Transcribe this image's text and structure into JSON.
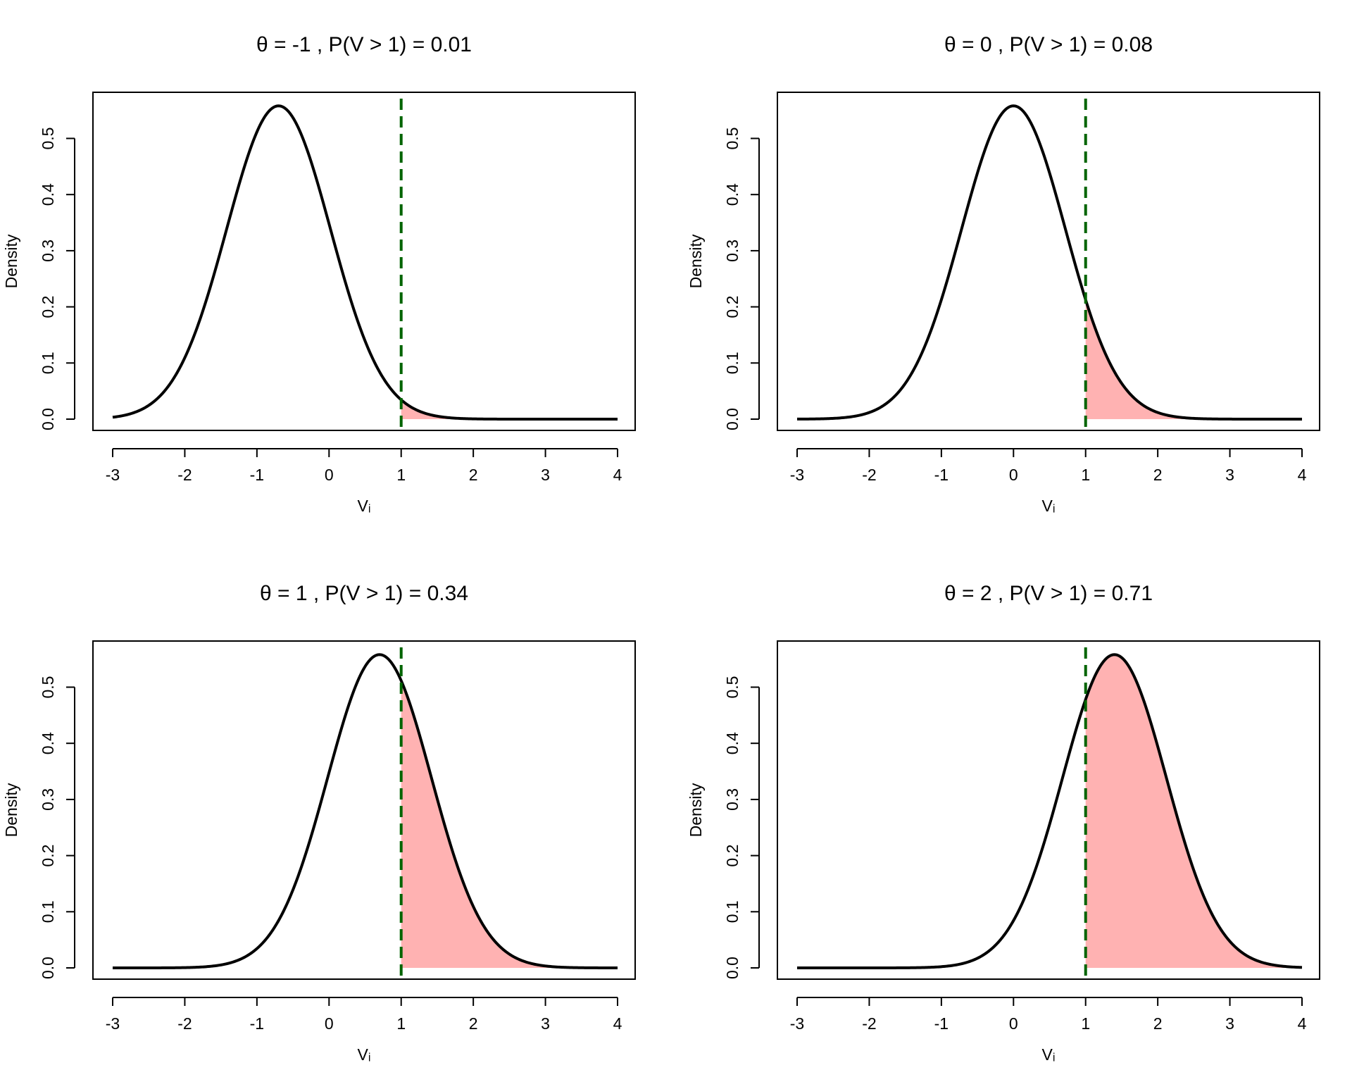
{
  "chart_data": [
    {
      "type": "area",
      "title": "θ = -1 , P(V > 1) =  0.01",
      "theta": -1,
      "prob_label": "0.01",
      "xlabel": "Vᵢ",
      "ylabel": "Density",
      "xlim": [
        -3,
        4
      ],
      "ylim": [
        0,
        0.56
      ],
      "xticks": [
        -3,
        -2,
        -1,
        0,
        1,
        2,
        3,
        4
      ],
      "yticks": [
        0.0,
        0.1,
        0.2,
        0.3,
        0.4,
        0.5
      ],
      "threshold": 1,
      "mode": -0.7,
      "peak_density": 0.558,
      "shaded_region": "V > 1"
    },
    {
      "type": "area",
      "title": "θ = 0 , P(V > 1) =  0.08",
      "theta": 0,
      "prob_label": "0.08",
      "xlabel": "Vᵢ",
      "ylabel": "Density",
      "xlim": [
        -3,
        4
      ],
      "ylim": [
        0,
        0.56
      ],
      "xticks": [
        -3,
        -2,
        -1,
        0,
        1,
        2,
        3,
        4
      ],
      "yticks": [
        0.0,
        0.1,
        0.2,
        0.3,
        0.4,
        0.5
      ],
      "threshold": 1,
      "mode": 0.0,
      "peak_density": 0.558,
      "shaded_region": "V > 1"
    },
    {
      "type": "area",
      "title": "θ = 1 , P(V > 1) =  0.34",
      "theta": 1,
      "prob_label": "0.34",
      "xlabel": "Vᵢ",
      "ylabel": "Density",
      "xlim": [
        -3,
        4
      ],
      "ylim": [
        0,
        0.56
      ],
      "xticks": [
        -3,
        -2,
        -1,
        0,
        1,
        2,
        3,
        4
      ],
      "yticks": [
        0.0,
        0.1,
        0.2,
        0.3,
        0.4,
        0.5
      ],
      "threshold": 1,
      "mode": 0.7,
      "peak_density": 0.558,
      "shaded_region": "V > 1"
    },
    {
      "type": "area",
      "title": "θ = 2 , P(V > 1) =  0.71",
      "theta": 2,
      "prob_label": "0.71",
      "xlabel": "Vᵢ",
      "ylabel": "Density",
      "xlim": [
        -3,
        4
      ],
      "ylim": [
        0,
        0.56
      ],
      "xticks": [
        -3,
        -2,
        -1,
        0,
        1,
        2,
        3,
        4
      ],
      "yticks": [
        0.0,
        0.1,
        0.2,
        0.3,
        0.4,
        0.5
      ],
      "threshold": 1,
      "mode": 1.4,
      "peak_density": 0.558,
      "shaded_region": "V > 1"
    }
  ],
  "colors": {
    "curve": "#000000",
    "threshold_line": "#006400",
    "shade": "#ffb2b2",
    "frame": "#000000"
  }
}
